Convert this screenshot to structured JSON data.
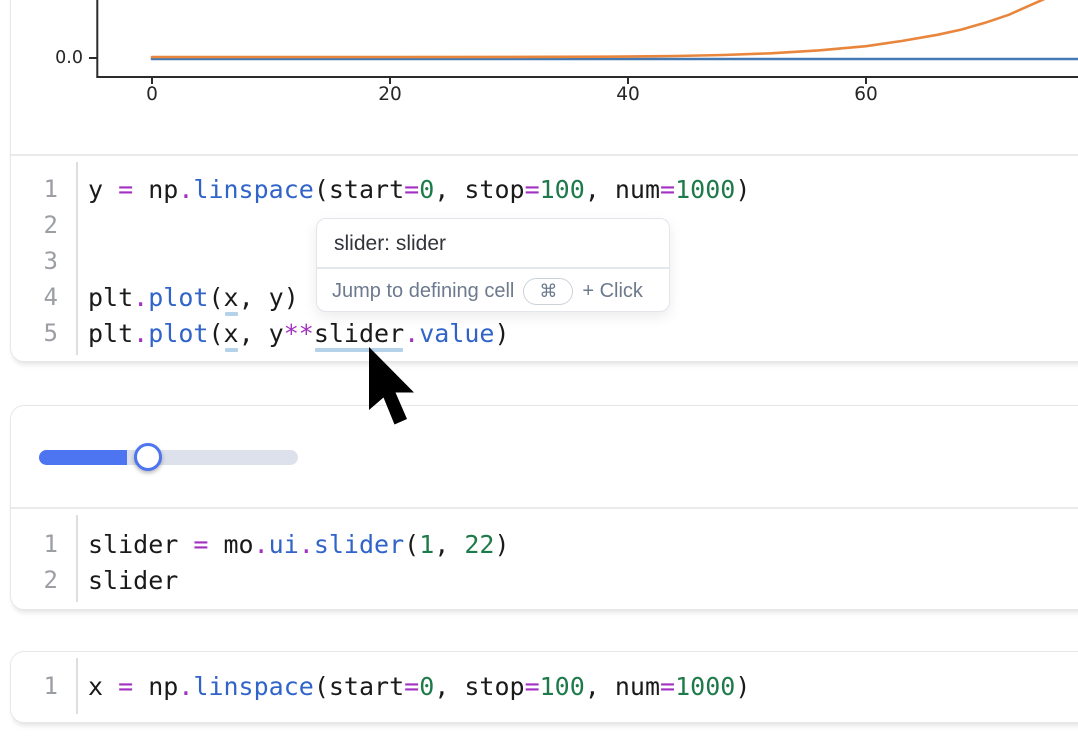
{
  "chart_data": {
    "type": "line",
    "title": "",
    "xlabel": "",
    "ylabel": "",
    "x_tick_values": [
      0,
      20,
      40,
      60
    ],
    "x_tick_labels": [
      "0",
      "20",
      "40",
      "60"
    ],
    "y_tick_labels": [
      "0.0"
    ],
    "x_visible_range": [
      -4.6,
      77.8
    ],
    "grid": false,
    "legend": null,
    "note": "Only the bottom sliver of the figure is visible; y values are normalized to visible crop height (0 = the 0.0 baseline, 1 = top edge of crop).",
    "series": [
      {
        "name": "plt.plot(x, y)",
        "color": "#4579b2",
        "points_norm": [
          [
            0,
            0
          ],
          [
            77.8,
            0
          ]
        ]
      },
      {
        "name": "plt.plot(x, y**slider.value)",
        "color": "#e8863d",
        "points_norm": [
          [
            0,
            0
          ],
          [
            20,
            0
          ],
          [
            30,
            0.002
          ],
          [
            38,
            0.006
          ],
          [
            44,
            0.018
          ],
          [
            48,
            0.035
          ],
          [
            52,
            0.065
          ],
          [
            56,
            0.115
          ],
          [
            60,
            0.19
          ],
          [
            63,
            0.28
          ],
          [
            66,
            0.39
          ],
          [
            68,
            0.48
          ],
          [
            70,
            0.6
          ],
          [
            72,
            0.74
          ],
          [
            73.5,
            0.88
          ],
          [
            75,
            1.02
          ],
          [
            75.8,
            1.12
          ]
        ]
      }
    ]
  },
  "tooltip": {
    "title": "slider: slider",
    "hint": "Jump to defining cell",
    "key": "⌘",
    "suffix": "+ Click"
  },
  "slider_widget": {
    "fill_percent": 34
  },
  "cells": [
    {
      "name": "plot-cell",
      "code": {
        "lines": [
          {
            "num": "1",
            "tokens": [
              [
                "y ",
                "t"
              ],
              [
                "=",
                "o"
              ],
              [
                " np",
                "t"
              ],
              [
                ".",
                "o"
              ],
              [
                "linspace",
                "f"
              ],
              [
                "(start",
                "t"
              ],
              [
                "=",
                "o"
              ],
              [
                "0",
                "n"
              ],
              [
                ", stop",
                "t"
              ],
              [
                "=",
                "o"
              ],
              [
                "100",
                "n"
              ],
              [
                ", num",
                "t"
              ],
              [
                "=",
                "o"
              ],
              [
                "1000",
                "n"
              ],
              [
                ")",
                "t"
              ]
            ]
          },
          {
            "num": "2",
            "tokens": []
          },
          {
            "num": "3",
            "tokens": []
          },
          {
            "num": "4",
            "tokens": [
              [
                "plt",
                "t"
              ],
              [
                ".",
                "o"
              ],
              [
                "plot",
                "f"
              ],
              [
                "(",
                "t"
              ],
              [
                "x",
                "t u"
              ],
              [
                ", y)",
                "t"
              ]
            ]
          },
          {
            "num": "5",
            "tokens": [
              [
                "plt",
                "t"
              ],
              [
                ".",
                "o"
              ],
              [
                "plot",
                "f"
              ],
              [
                "(",
                "t"
              ],
              [
                "x",
                "t u"
              ],
              [
                ", y",
                "t"
              ],
              [
                "**",
                "o"
              ],
              [
                "slider",
                "t u"
              ],
              [
                ".",
                "o"
              ],
              [
                "value",
                "f"
              ],
              [
                ")",
                "t"
              ]
            ]
          }
        ]
      }
    },
    {
      "name": "slider-cell",
      "code": {
        "lines": [
          {
            "num": "1",
            "tokens": [
              [
                "slider ",
                "t"
              ],
              [
                "=",
                "o"
              ],
              [
                " mo",
                "t"
              ],
              [
                ".",
                "o"
              ],
              [
                "ui",
                "f"
              ],
              [
                ".",
                "o"
              ],
              [
                "slider",
                "f"
              ],
              [
                "(",
                "t"
              ],
              [
                "1",
                "n"
              ],
              [
                ", ",
                "t"
              ],
              [
                "22",
                "n"
              ],
              [
                ")",
                "t"
              ]
            ]
          },
          {
            "num": "2",
            "tokens": [
              [
                "slider",
                "t"
              ]
            ]
          }
        ]
      }
    },
    {
      "name": "x-cell",
      "code": {
        "lines": [
          {
            "num": "1",
            "tokens": [
              [
                "x ",
                "t"
              ],
              [
                "=",
                "o"
              ],
              [
                " np",
                "t"
              ],
              [
                ".",
                "o"
              ],
              [
                "linspace",
                "f"
              ],
              [
                "(start",
                "t"
              ],
              [
                "=",
                "o"
              ],
              [
                "0",
                "n"
              ],
              [
                ", stop",
                "t"
              ],
              [
                "=",
                "o"
              ],
              [
                "100",
                "n"
              ],
              [
                ", num",
                "t"
              ],
              [
                "=",
                "o"
              ],
              [
                "1000",
                "n"
              ],
              [
                ")",
                "t"
              ]
            ]
          }
        ]
      }
    }
  ],
  "colors": {
    "accent_blue": "#4d74f1",
    "code_operator": "#a230c0",
    "code_function": "#3064c8",
    "code_number": "#1e7a4a",
    "line_blue": "#4579b2",
    "line_orange": "#e8863d",
    "variable_underline": "#b5d2e8"
  }
}
